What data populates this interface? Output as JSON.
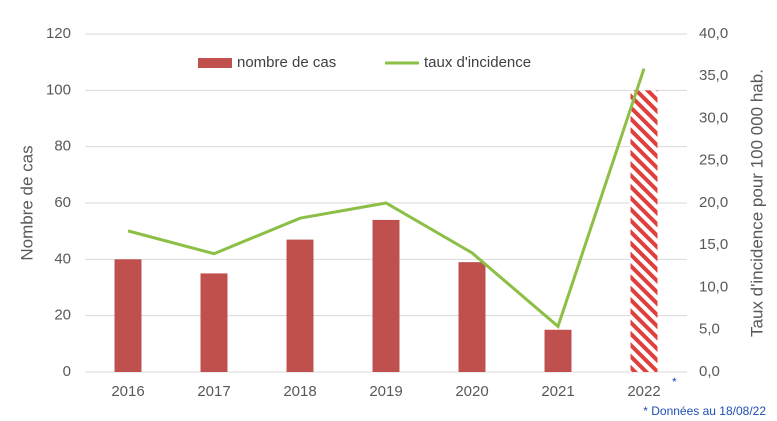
{
  "chart_data": {
    "type": "bar_line",
    "categories": [
      "2016",
      "2017",
      "2018",
      "2019",
      "2020",
      "2021",
      "2022"
    ],
    "series": [
      {
        "name": "nombre de cas",
        "type": "bar",
        "color": "#c0504d",
        "values": [
          40,
          35,
          47,
          54,
          39,
          15,
          100
        ],
        "hatched": [
          6
        ]
      },
      {
        "name": "taux d'incidence",
        "type": "line",
        "axis": "y2",
        "color": "#8cbf45",
        "values": [
          16.7,
          14.0,
          18.2,
          20.0,
          14.1,
          5.4,
          35.9
        ]
      }
    ],
    "ylabel": "Nombre de cas",
    "y2label": "Taux d'incidence pour 100 000 hab.",
    "ylim": [
      0,
      120
    ],
    "yticks": [
      0,
      20,
      40,
      60,
      80,
      100,
      120
    ],
    "y2lim": [
      0,
      40
    ],
    "y2ticks": [
      {
        "value": 0,
        "label": "0,0"
      },
      {
        "value": 5,
        "label": "5,0"
      },
      {
        "value": 10,
        "label": "10,0"
      },
      {
        "value": 15,
        "label": "15,0"
      },
      {
        "value": 20,
        "label": "20,0"
      },
      {
        "value": 25,
        "label": "25,0"
      },
      {
        "value": 30,
        "label": "30,0"
      },
      {
        "value": 35,
        "label": "35,0"
      },
      {
        "value": 40,
        "label": "40,0"
      }
    ],
    "grid": true,
    "legend": "top",
    "annotations": [
      "*",
      "* Données au 18/08/22"
    ]
  }
}
